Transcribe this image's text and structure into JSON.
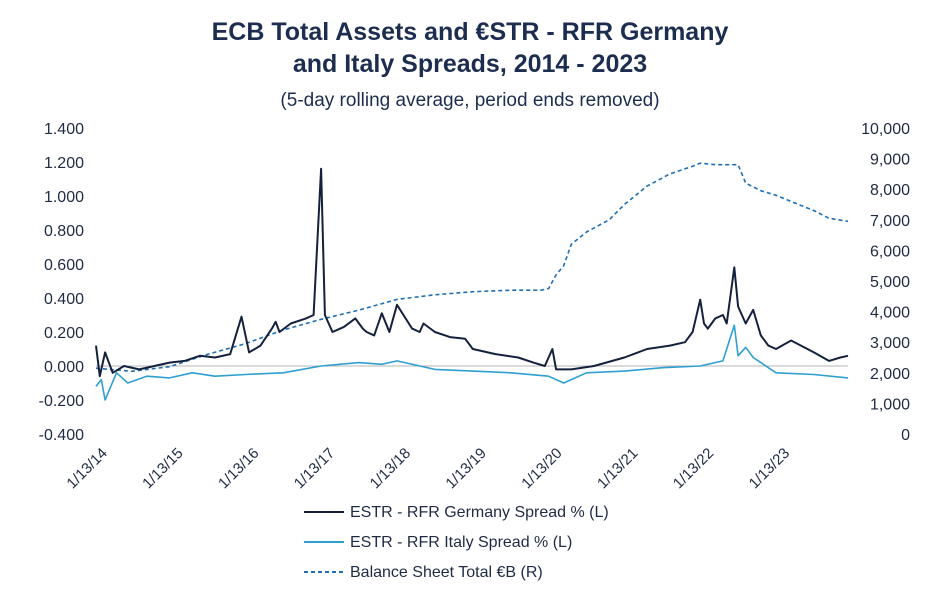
{
  "colors": {
    "germany": "#14213d",
    "italy": "#2e9fd0",
    "balance": "#1f6fb2",
    "zero_line": "#b5b5b5",
    "text": "#1f2a44",
    "title": "#1c2d4f"
  },
  "chart_data": {
    "type": "line",
    "title_line1": "ECB Total Assets and €STR - RFR Germany",
    "title_line2": "and Italy Spreads, 2014 - 2023",
    "subtitle": "(5-day rolling average, period ends removed)",
    "x_tick_labels": [
      "1/13/14",
      "1/13/15",
      "1/13/16",
      "1/13/17",
      "1/13/18",
      "1/13/19",
      "1/13/20",
      "1/13/21",
      "1/13/22",
      "1/13/23"
    ],
    "x_range": [
      2014.03,
      2023.95
    ],
    "y_left": {
      "range": [
        -0.4,
        1.4
      ],
      "tick_labels": [
        "1.400",
        "1.200",
        "1.000",
        "0.800",
        "0.600",
        "0.400",
        "0.200",
        "0.000",
        "-0.200",
        "-0.400"
      ],
      "tick_values": [
        1.4,
        1.2,
        1.0,
        0.8,
        0.6,
        0.4,
        0.2,
        0.0,
        -0.2,
        -0.4
      ]
    },
    "y_right": {
      "range": [
        0,
        10000
      ],
      "tick_labels": [
        "10,000",
        "9,000",
        "8,000",
        "7,000",
        "6,000",
        "5,000",
        "4,000",
        "3,000",
        "2,000",
        "1,000",
        "0"
      ],
      "tick_values": [
        10000,
        9000,
        8000,
        7000,
        6000,
        5000,
        4000,
        3000,
        2000,
        1000,
        0
      ]
    },
    "grid": false,
    "legend_position": "bottom-center",
    "series": [
      {
        "name": "ESTR - RFR Germany Spread % (L)",
        "axis": "left",
        "style": "solid",
        "x": [
          2014.03,
          2014.08,
          2014.15,
          2014.25,
          2014.4,
          2014.6,
          2014.8,
          2015.0,
          2015.2,
          2015.4,
          2015.6,
          2015.8,
          2015.95,
          2016.05,
          2016.2,
          2016.35,
          2016.4,
          2016.45,
          2016.6,
          2016.8,
          2016.9,
          2017.0,
          2017.05,
          2017.1,
          2017.15,
          2017.3,
          2017.45,
          2017.55,
          2017.6,
          2017.7,
          2017.8,
          2017.9,
          2018.0,
          2018.2,
          2018.3,
          2018.35,
          2018.5,
          2018.7,
          2018.9,
          2019.0,
          2019.3,
          2019.6,
          2019.8,
          2019.95,
          2020.05,
          2020.1,
          2020.3,
          2020.6,
          2021.0,
          2021.3,
          2021.6,
          2021.8,
          2021.9,
          2022.0,
          2022.05,
          2022.1,
          2022.2,
          2022.3,
          2022.35,
          2022.45,
          2022.5,
          2022.55,
          2022.6,
          2022.7,
          2022.8,
          2022.9,
          2023.0,
          2023.2,
          2023.5,
          2023.7,
          2023.85,
          2023.95
        ],
        "y": [
          0.12,
          -0.06,
          0.08,
          -0.04,
          0.0,
          -0.02,
          0.0,
          0.02,
          0.03,
          0.06,
          0.05,
          0.07,
          0.29,
          0.08,
          0.12,
          0.22,
          0.26,
          0.2,
          0.25,
          0.28,
          0.3,
          1.16,
          0.3,
          0.25,
          0.2,
          0.23,
          0.28,
          0.22,
          0.2,
          0.18,
          0.31,
          0.2,
          0.36,
          0.22,
          0.2,
          0.25,
          0.2,
          0.17,
          0.16,
          0.1,
          0.07,
          0.05,
          0.02,
          0.0,
          0.1,
          -0.02,
          -0.02,
          0.0,
          0.05,
          0.1,
          0.12,
          0.14,
          0.2,
          0.39,
          0.25,
          0.22,
          0.28,
          0.3,
          0.25,
          0.58,
          0.35,
          0.3,
          0.25,
          0.33,
          0.18,
          0.12,
          0.1,
          0.15,
          0.08,
          0.03,
          0.05,
          0.06
        ]
      },
      {
        "name": "ESTR - RFR Italy Spread % (L)",
        "axis": "left",
        "style": "solid",
        "x": [
          2014.03,
          2014.1,
          2014.15,
          2014.3,
          2014.45,
          2014.7,
          2015.0,
          2015.3,
          2015.6,
          2016.0,
          2016.5,
          2017.0,
          2017.5,
          2017.8,
          2018.0,
          2018.5,
          2019.0,
          2019.5,
          2020.0,
          2020.2,
          2020.5,
          2021.0,
          2021.5,
          2022.0,
          2022.3,
          2022.45,
          2022.5,
          2022.6,
          2022.7,
          2022.8,
          2023.0,
          2023.5,
          2023.95
        ],
        "y": [
          -0.12,
          -0.08,
          -0.2,
          -0.04,
          -0.1,
          -0.06,
          -0.07,
          -0.04,
          -0.06,
          -0.05,
          -0.04,
          0.0,
          0.02,
          0.01,
          0.03,
          -0.02,
          -0.03,
          -0.04,
          -0.06,
          -0.1,
          -0.04,
          -0.03,
          -0.01,
          0.0,
          0.03,
          0.24,
          0.06,
          0.11,
          0.05,
          0.02,
          -0.04,
          -0.05,
          -0.07
        ]
      },
      {
        "name": "Balance Sheet Total €B (R)",
        "axis": "right",
        "style": "dashed",
        "x": [
          2014.03,
          2014.5,
          2015.0,
          2015.5,
          2016.0,
          2016.5,
          2017.0,
          2017.5,
          2018.0,
          2018.5,
          2019.0,
          2019.5,
          2019.9,
          2020.0,
          2020.1,
          2020.2,
          2020.3,
          2020.5,
          2020.8,
          2021.0,
          2021.3,
          2021.6,
          2021.9,
          2022.0,
          2022.2,
          2022.5,
          2022.6,
          2022.8,
          2023.0,
          2023.2,
          2023.5,
          2023.7,
          2023.95
        ],
        "y": [
          2150,
          2050,
          2200,
          2600,
          2950,
          3400,
          3750,
          4050,
          4400,
          4550,
          4650,
          4700,
          4700,
          4750,
          5200,
          5500,
          6200,
          6600,
          7000,
          7500,
          8100,
          8500,
          8750,
          8850,
          8800,
          8800,
          8200,
          7950,
          7800,
          7600,
          7300,
          7050,
          6950
        ]
      }
    ]
  }
}
